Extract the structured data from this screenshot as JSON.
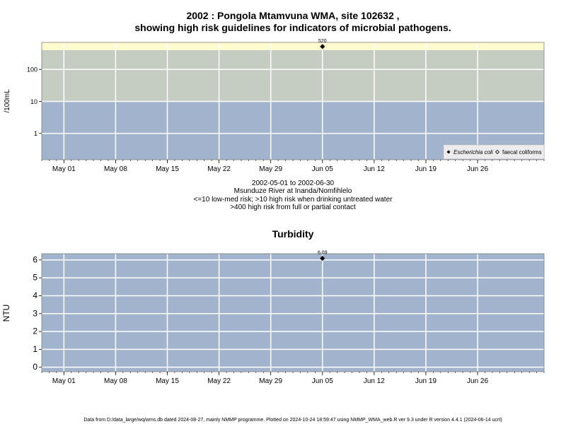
{
  "footer": "Data from D:/data_large/wq/wms.db dated 2024-08-27, mainly NMMP programme. Plotted on 2024-10-24 18:59:47 using NMMP_WMA_web.R ver 9.3 under R version 4.4.1 (2024-06-14 ucrt)",
  "colors": {
    "low_band": "#a2b4cd",
    "mid_band": "#c5cdc2",
    "high_band": "#fdfbcf",
    "grid": "#ffffff",
    "marker": "#000000",
    "background": "#ffffff"
  },
  "chart_data": [
    {
      "type": "scatter",
      "title_line1": "2002 : Pongola Mtamvuna WMA, site 102632 ,",
      "title_line2": "showing high risk guidelines for indicators of microbial pathogens.",
      "ylabel": "/100mL",
      "yscale": "log",
      "yticks": [
        1,
        10,
        100
      ],
      "ytick_labels": [
        "1",
        "10",
        "100"
      ],
      "ylim": [
        0.15,
        700
      ],
      "xlim": [
        "2002-04-28",
        "2002-07-05"
      ],
      "xticks": [
        "2002-05-01",
        "2002-05-08",
        "2002-05-15",
        "2002-05-22",
        "2002-05-29",
        "2002-06-05",
        "2002-06-12",
        "2002-06-19",
        "2002-06-26"
      ],
      "xtick_labels": [
        "May 01",
        "May 08",
        "May 15",
        "May 22",
        "May 29",
        "Jun 05",
        "Jun 12",
        "Jun 19",
        "Jun 26"
      ],
      "grid": true,
      "guideline_bands": [
        {
          "from": 0.15,
          "to": 10,
          "color": "#a2b4cd"
        },
        {
          "from": 10,
          "to": 400,
          "color": "#c5cdc2"
        },
        {
          "from": 400,
          "to": 700,
          "color": "#fdfbcf"
        }
      ],
      "series": [
        {
          "name": "Escherichia coli",
          "marker": "filled-diamond",
          "points": [
            {
              "x": "2002-06-05",
              "y": 520,
              "label": "520"
            }
          ]
        },
        {
          "name": "faecal coliforms",
          "marker": "open-diamond",
          "points": []
        }
      ],
      "legend_placement": "bottom-right",
      "caption": [
        "2002-05-01 to 2002-06-30",
        "Msunduze River at Inanda/Nomfihlelo",
        "<=10 low-med risk; >10 high risk when drinking untreated water",
        ">400 high risk from full or partial contact"
      ]
    },
    {
      "type": "scatter",
      "title": "Turbidity",
      "ylabel": "NTU",
      "yticks": [
        0,
        1,
        2,
        3,
        4,
        5,
        6
      ],
      "ytick_labels": [
        "0",
        "1",
        "2",
        "3",
        "4",
        "5",
        "6"
      ],
      "ylim": [
        -0.25,
        6.35
      ],
      "xlim": [
        "2002-04-28",
        "2002-07-05"
      ],
      "xticks": [
        "2002-05-01",
        "2002-05-08",
        "2002-05-15",
        "2002-05-22",
        "2002-05-29",
        "2002-06-05",
        "2002-06-12",
        "2002-06-19",
        "2002-06-26"
      ],
      "xtick_labels": [
        "May 01",
        "May 08",
        "May 15",
        "May 22",
        "May 29",
        "Jun 05",
        "Jun 12",
        "Jun 19",
        "Jun 26"
      ],
      "grid": true,
      "series": [
        {
          "marker": "filled-diamond",
          "points": [
            {
              "x": "2002-06-05",
              "y": 6.09,
              "label": "6.09"
            }
          ]
        }
      ]
    }
  ]
}
